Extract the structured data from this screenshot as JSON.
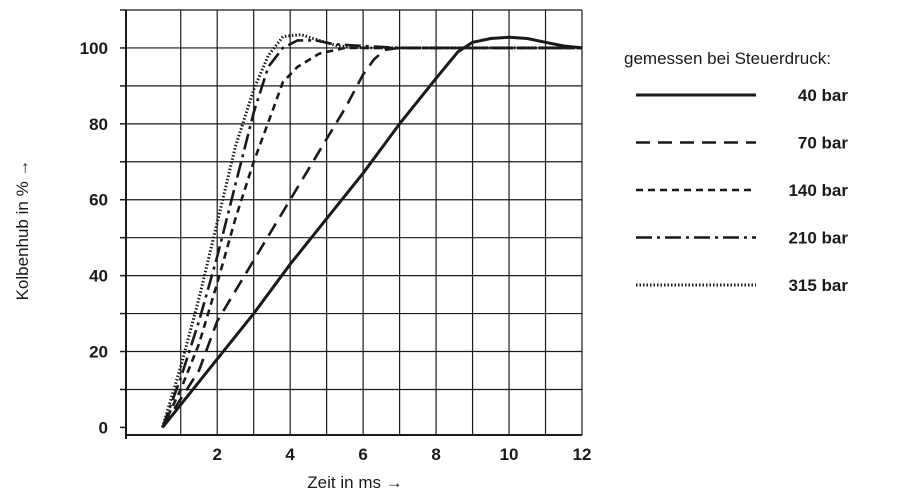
{
  "chart_data": {
    "type": "line",
    "xlabel": "Zeit in ms →",
    "ylabel": "Kolbenhub in % →",
    "xlim": [
      -0.5,
      12
    ],
    "ylim": [
      -2,
      110
    ],
    "x_ticks": [
      2,
      4,
      6,
      8,
      10,
      12
    ],
    "y_ticks": [
      0,
      20,
      40,
      60,
      80,
      100
    ],
    "grid": true,
    "legend_title": "gemessen bei Steuerdruck:",
    "legend_position": "right",
    "series": [
      {
        "name": "40 bar",
        "style": "solid",
        "points": [
          [
            0.5,
            0
          ],
          [
            2,
            18
          ],
          [
            3,
            30
          ],
          [
            4,
            43
          ],
          [
            5,
            55
          ],
          [
            6,
            67
          ],
          [
            7,
            80
          ],
          [
            8,
            92
          ],
          [
            8.6,
            99
          ],
          [
            9,
            101.5
          ],
          [
            9.5,
            102.5
          ],
          [
            10,
            102.8
          ],
          [
            10.5,
            102.5
          ],
          [
            11,
            101.5
          ],
          [
            11.5,
            100.5
          ],
          [
            12,
            100
          ]
        ]
      },
      {
        "name": "70 bar",
        "style": "dashed",
        "points": [
          [
            0.5,
            0
          ],
          [
            1.5,
            15
          ],
          [
            2,
            28
          ],
          [
            3,
            44
          ],
          [
            4,
            60
          ],
          [
            5,
            76
          ],
          [
            5.5,
            84
          ],
          [
            6,
            93
          ],
          [
            6.3,
            97
          ],
          [
            6.6,
            99.5
          ],
          [
            7,
            100
          ],
          [
            12,
            100
          ]
        ]
      },
      {
        "name": "140 bar",
        "style": "dashed-short",
        "points": [
          [
            0.5,
            0
          ],
          [
            1,
            10
          ],
          [
            1.5,
            22
          ],
          [
            2,
            38
          ],
          [
            2.5,
            55
          ],
          [
            3,
            70
          ],
          [
            3.5,
            83
          ],
          [
            3.8,
            91
          ],
          [
            4.2,
            95
          ],
          [
            4.8,
            98.5
          ],
          [
            5.5,
            100
          ],
          [
            12,
            100
          ]
        ]
      },
      {
        "name": "210 bar",
        "style": "dash-dot",
        "points": [
          [
            0.5,
            0
          ],
          [
            1,
            13
          ],
          [
            1.5,
            28
          ],
          [
            2,
            45
          ],
          [
            2.5,
            64
          ],
          [
            3,
            83
          ],
          [
            3.4,
            95
          ],
          [
            3.8,
            100
          ],
          [
            4.2,
            102
          ],
          [
            4.7,
            102
          ],
          [
            5.2,
            101
          ],
          [
            6,
            100.5
          ],
          [
            7,
            100
          ],
          [
            12,
            100
          ]
        ]
      },
      {
        "name": "315 bar",
        "style": "dotted",
        "points": [
          [
            0.5,
            0
          ],
          [
            1,
            16
          ],
          [
            1.5,
            34
          ],
          [
            2,
            54
          ],
          [
            2.5,
            74
          ],
          [
            3,
            89
          ],
          [
            3.4,
            98
          ],
          [
            3.8,
            103
          ],
          [
            4.3,
            103.5
          ],
          [
            4.8,
            102
          ],
          [
            5.3,
            100.5
          ],
          [
            6,
            100
          ],
          [
            12,
            100
          ]
        ]
      }
    ]
  }
}
